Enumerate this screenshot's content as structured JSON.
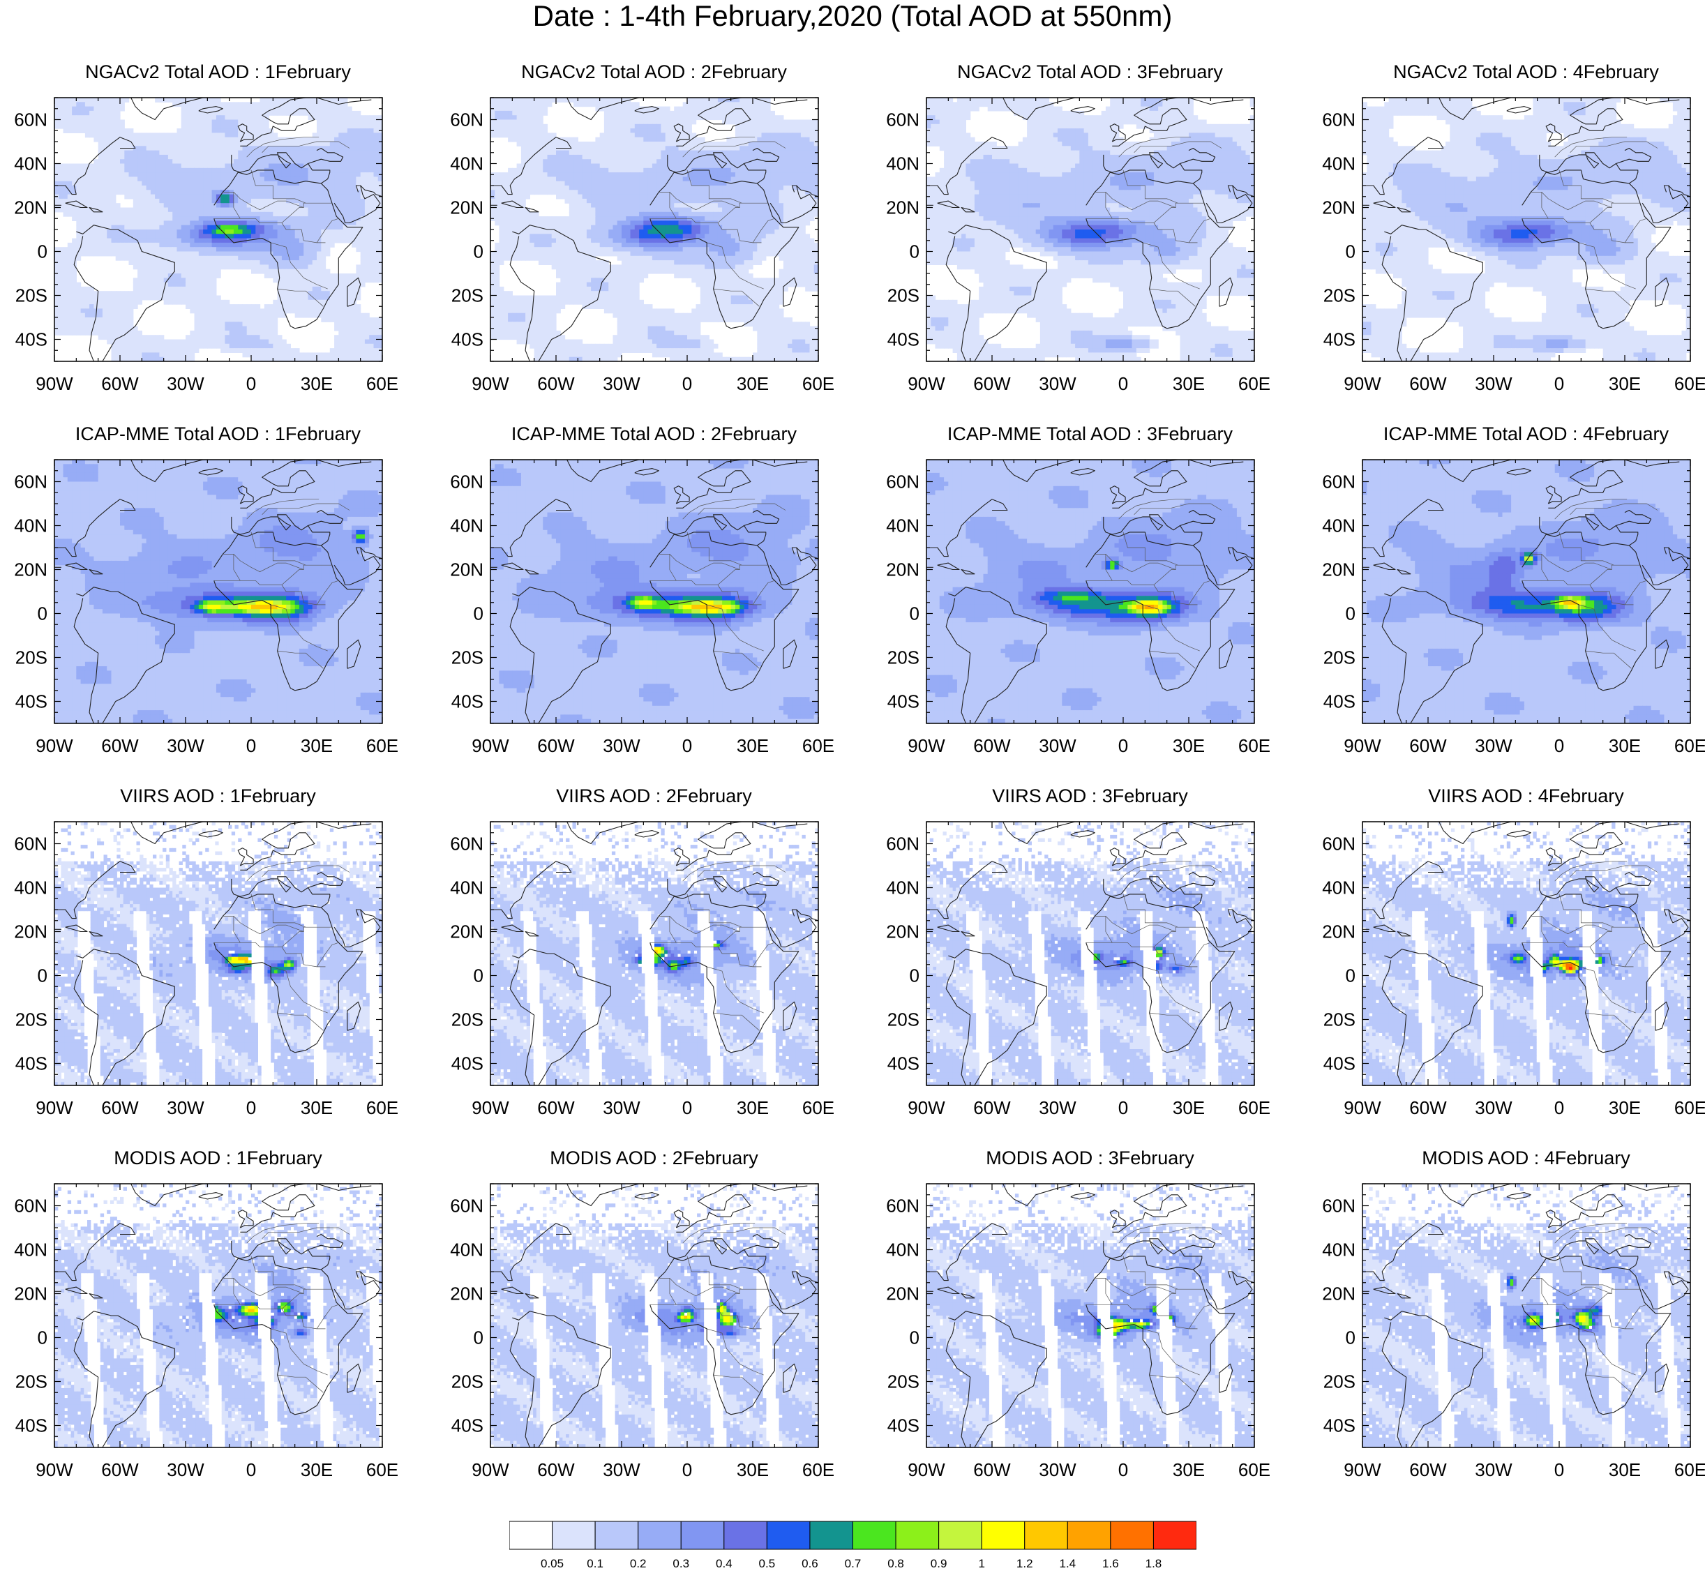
{
  "title": "Date : 1-4th February,2020 (Total AOD at 550nm)",
  "panels": [
    {
      "title": "NGACv2 Total AOD : 1February",
      "source": "NGACv2",
      "day": 1,
      "kind": "model"
    },
    {
      "title": "NGACv2 Total AOD : 2February",
      "source": "NGACv2",
      "day": 2,
      "kind": "model"
    },
    {
      "title": "NGACv2 Total AOD : 3February",
      "source": "NGACv2",
      "day": 3,
      "kind": "model"
    },
    {
      "title": "NGACv2 Total AOD : 4February",
      "source": "NGACv2",
      "day": 4,
      "kind": "model"
    },
    {
      "title": "ICAP-MME Total AOD : 1February",
      "source": "ICAP-MME",
      "day": 1,
      "kind": "model"
    },
    {
      "title": "ICAP-MME Total AOD : 2February",
      "source": "ICAP-MME",
      "day": 2,
      "kind": "model"
    },
    {
      "title": "ICAP-MME Total AOD : 3February",
      "source": "ICAP-MME",
      "day": 3,
      "kind": "model"
    },
    {
      "title": "ICAP-MME Total AOD : 4February",
      "source": "ICAP-MME",
      "day": 4,
      "kind": "model"
    },
    {
      "title": "VIIRS AOD : 1February",
      "source": "VIIRS",
      "day": 1,
      "kind": "satellite"
    },
    {
      "title": "VIIRS AOD : 2February",
      "source": "VIIRS",
      "day": 2,
      "kind": "satellite"
    },
    {
      "title": "VIIRS AOD : 3February",
      "source": "VIIRS",
      "day": 3,
      "kind": "satellite"
    },
    {
      "title": "VIIRS AOD : 4February",
      "source": "VIIRS",
      "day": 4,
      "kind": "satellite"
    },
    {
      "title": "MODIS AOD : 1February",
      "source": "MODIS",
      "day": 1,
      "kind": "satellite"
    },
    {
      "title": "MODIS AOD : 2February",
      "source": "MODIS",
      "day": 2,
      "kind": "satellite"
    },
    {
      "title": "MODIS AOD : 3February",
      "source": "MODIS",
      "day": 3,
      "kind": "satellite"
    },
    {
      "title": "MODIS AOD : 4February",
      "source": "MODIS",
      "day": 4,
      "kind": "satellite"
    }
  ],
  "map": {
    "lon_range": [
      -90,
      60
    ],
    "lat_range": [
      -50,
      70
    ],
    "lon_ticks": [
      -90,
      -60,
      -30,
      0,
      30,
      60
    ],
    "lon_tick_labels": [
      "90W",
      "60W",
      "30W",
      "0",
      "30E",
      "60E"
    ],
    "lat_ticks": [
      60,
      40,
      20,
      0,
      -20,
      -40
    ],
    "lat_tick_labels": [
      "60N",
      "40N",
      "20N",
      "0",
      "20S",
      "40S"
    ]
  },
  "colorbar": {
    "labels": [
      "0.05",
      "0.1",
      "0.2",
      "0.3",
      "0.4",
      "0.5",
      "0.6",
      "0.7",
      "0.8",
      "0.9",
      "1",
      "1.2",
      "1.4",
      "1.6",
      "1.8"
    ],
    "colors": [
      "#ffffff",
      "#dbe3fc",
      "#b9c8fa",
      "#97acf6",
      "#8196f2",
      "#6a72e6",
      "#1f5cf0",
      "#13948f",
      "#4be61f",
      "#8cf01a",
      "#c4f53d",
      "#ffff00",
      "#ffc800",
      "#ffa200",
      "#ff7100",
      "#ff2a0f"
    ]
  }
}
